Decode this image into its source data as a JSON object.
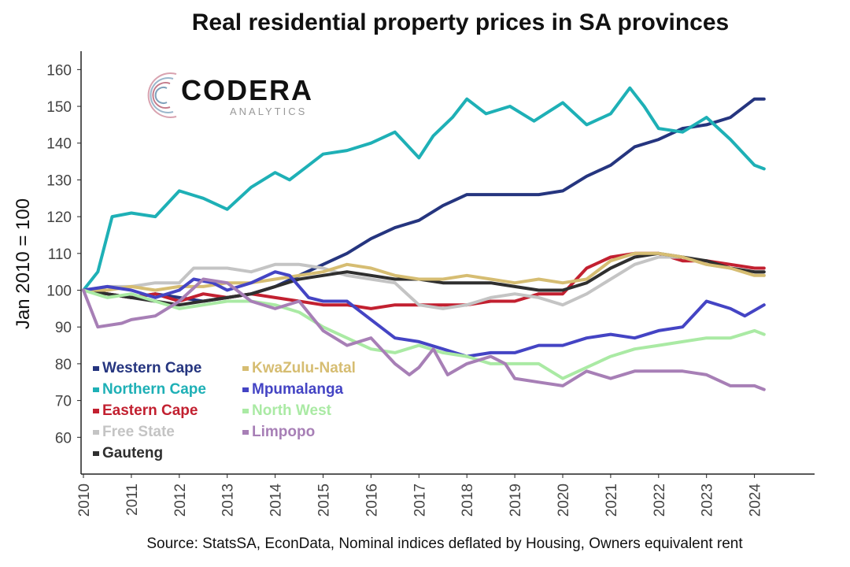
{
  "title": "Real residential property prices in SA provinces",
  "source": "Source: StatsSA, EconData, Nominal indices deflated by Housing, Owners equivalent rent",
  "logo": {
    "name": "CODERA",
    "sub": "ANALYTICS"
  },
  "chart_data": {
    "type": "line",
    "title": "Real residential property prices in SA provinces",
    "ylabel": "Jan 2010 = 100",
    "xlabel": "",
    "xlim": [
      2010,
      2025
    ],
    "ylim": [
      50,
      165
    ],
    "yticks": [
      60,
      70,
      80,
      90,
      100,
      110,
      120,
      130,
      140,
      150,
      160
    ],
    "xticks": [
      2010,
      2011,
      2012,
      2013,
      2014,
      2015,
      2016,
      2017,
      2018,
      2019,
      2020,
      2021,
      2022,
      2023,
      2024
    ],
    "grid": false,
    "legend_position": "bottom-left",
    "series": [
      {
        "name": "Western Cape",
        "color": "#25357f",
        "points": [
          [
            2010,
            100
          ],
          [
            2010.5,
            99
          ],
          [
            2011,
            98
          ],
          [
            2011.5,
            99
          ],
          [
            2012,
            98
          ],
          [
            2012.5,
            97
          ],
          [
            2013,
            98
          ],
          [
            2013.5,
            99
          ],
          [
            2014,
            101
          ],
          [
            2014.5,
            104
          ],
          [
            2015,
            107
          ],
          [
            2015.5,
            110
          ],
          [
            2016,
            114
          ],
          [
            2016.5,
            117
          ],
          [
            2017,
            119
          ],
          [
            2017.5,
            123
          ],
          [
            2018,
            126
          ],
          [
            2018.5,
            126
          ],
          [
            2019,
            126
          ],
          [
            2019.5,
            126
          ],
          [
            2020,
            127
          ],
          [
            2020.5,
            131
          ],
          [
            2021,
            134
          ],
          [
            2021.5,
            139
          ],
          [
            2022,
            141
          ],
          [
            2022.5,
            144
          ],
          [
            2023,
            145
          ],
          [
            2023.5,
            147
          ],
          [
            2024,
            152
          ],
          [
            2024.2,
            152
          ]
        ]
      },
      {
        "name": "Northern Cape",
        "color": "#1eb0b6",
        "points": [
          [
            2010,
            100
          ],
          [
            2010.3,
            105
          ],
          [
            2010.6,
            120
          ],
          [
            2011,
            121
          ],
          [
            2011.5,
            120
          ],
          [
            2012,
            127
          ],
          [
            2012.5,
            125
          ],
          [
            2013,
            122
          ],
          [
            2013.5,
            128
          ],
          [
            2014,
            132
          ],
          [
            2014.3,
            130
          ],
          [
            2014.7,
            134
          ],
          [
            2015,
            137
          ],
          [
            2015.5,
            138
          ],
          [
            2016,
            140
          ],
          [
            2016.5,
            143
          ],
          [
            2017,
            136
          ],
          [
            2017.3,
            142
          ],
          [
            2017.7,
            147
          ],
          [
            2018,
            152
          ],
          [
            2018.4,
            148
          ],
          [
            2018.9,
            150
          ],
          [
            2019.4,
            146
          ],
          [
            2020,
            151
          ],
          [
            2020.5,
            145
          ],
          [
            2021,
            148
          ],
          [
            2021.4,
            155
          ],
          [
            2021.7,
            150
          ],
          [
            2022,
            144
          ],
          [
            2022.5,
            143
          ],
          [
            2023,
            147
          ],
          [
            2023.5,
            141
          ],
          [
            2024,
            134
          ],
          [
            2024.2,
            133
          ]
        ]
      },
      {
        "name": "Eastern Cape",
        "color": "#c22030",
        "points": [
          [
            2010,
            100
          ],
          [
            2010.5,
            99
          ],
          [
            2011,
            98
          ],
          [
            2011.5,
            99
          ],
          [
            2012,
            97
          ],
          [
            2012.5,
            99
          ],
          [
            2013,
            98
          ],
          [
            2013.5,
            99
          ],
          [
            2014,
            98
          ],
          [
            2014.5,
            97
          ],
          [
            2015,
            96
          ],
          [
            2015.5,
            96
          ],
          [
            2016,
            95
          ],
          [
            2016.5,
            96
          ],
          [
            2017,
            96
          ],
          [
            2017.5,
            96
          ],
          [
            2018,
            96
          ],
          [
            2018.5,
            97
          ],
          [
            2019,
            97
          ],
          [
            2019.5,
            99
          ],
          [
            2020,
            99
          ],
          [
            2020.5,
            106
          ],
          [
            2021,
            109
          ],
          [
            2021.5,
            110
          ],
          [
            2022,
            110
          ],
          [
            2022.5,
            108
          ],
          [
            2023,
            108
          ],
          [
            2023.5,
            107
          ],
          [
            2024,
            106
          ],
          [
            2024.2,
            106
          ]
        ]
      },
      {
        "name": "Free State",
        "color": "#c4c4c4",
        "points": [
          [
            2010,
            100
          ],
          [
            2010.5,
            101
          ],
          [
            2011,
            101
          ],
          [
            2011.5,
            102
          ],
          [
            2012,
            102
          ],
          [
            2012.3,
            106
          ],
          [
            2012.7,
            106
          ],
          [
            2013,
            106
          ],
          [
            2013.5,
            105
          ],
          [
            2014,
            107
          ],
          [
            2014.5,
            107
          ],
          [
            2015,
            106
          ],
          [
            2015.5,
            104
          ],
          [
            2016,
            103
          ],
          [
            2016.5,
            102
          ],
          [
            2017,
            96
          ],
          [
            2017.5,
            95
          ],
          [
            2018,
            96
          ],
          [
            2018.5,
            98
          ],
          [
            2019,
            99
          ],
          [
            2019.5,
            98
          ],
          [
            2020,
            96
          ],
          [
            2020.5,
            99
          ],
          [
            2021,
            103
          ],
          [
            2021.5,
            107
          ],
          [
            2022,
            109
          ],
          [
            2022.5,
            109
          ],
          [
            2023,
            107
          ],
          [
            2023.5,
            106
          ],
          [
            2024,
            105
          ],
          [
            2024.2,
            104
          ]
        ]
      },
      {
        "name": "Gauteng",
        "color": "#2f2f2f",
        "points": [
          [
            2010,
            100
          ],
          [
            2010.5,
            99
          ],
          [
            2011,
            98
          ],
          [
            2011.5,
            97
          ],
          [
            2012,
            96
          ],
          [
            2012.5,
            97
          ],
          [
            2013,
            98
          ],
          [
            2013.5,
            99
          ],
          [
            2014,
            101
          ],
          [
            2014.5,
            103
          ],
          [
            2015,
            104
          ],
          [
            2015.5,
            105
          ],
          [
            2016,
            104
          ],
          [
            2016.5,
            103
          ],
          [
            2017,
            103
          ],
          [
            2017.5,
            102
          ],
          [
            2018,
            102
          ],
          [
            2018.5,
            102
          ],
          [
            2019,
            101
          ],
          [
            2019.5,
            100
          ],
          [
            2020,
            100
          ],
          [
            2020.5,
            102
          ],
          [
            2021,
            106
          ],
          [
            2021.5,
            109
          ],
          [
            2022,
            110
          ],
          [
            2022.5,
            109
          ],
          [
            2023,
            108
          ],
          [
            2023.5,
            106
          ],
          [
            2024,
            105
          ],
          [
            2024.2,
            105
          ]
        ]
      },
      {
        "name": "KwaZulu-Natal",
        "color": "#d6bd72",
        "points": [
          [
            2010,
            100
          ],
          [
            2010.5,
            100
          ],
          [
            2011,
            101
          ],
          [
            2011.5,
            100
          ],
          [
            2012,
            101
          ],
          [
            2012.5,
            101
          ],
          [
            2013,
            102
          ],
          [
            2013.5,
            102
          ],
          [
            2014,
            103
          ],
          [
            2014.5,
            104
          ],
          [
            2015,
            105
          ],
          [
            2015.5,
            107
          ],
          [
            2016,
            106
          ],
          [
            2016.5,
            104
          ],
          [
            2017,
            103
          ],
          [
            2017.5,
            103
          ],
          [
            2018,
            104
          ],
          [
            2018.5,
            103
          ],
          [
            2019,
            102
          ],
          [
            2019.5,
            103
          ],
          [
            2020,
            102
          ],
          [
            2020.5,
            103
          ],
          [
            2021,
            108
          ],
          [
            2021.5,
            110
          ],
          [
            2022,
            110
          ],
          [
            2022.5,
            109
          ],
          [
            2023,
            107
          ],
          [
            2023.5,
            106
          ],
          [
            2024,
            104
          ],
          [
            2024.2,
            104
          ]
        ]
      },
      {
        "name": "Mpumalanga",
        "color": "#4444c4",
        "points": [
          [
            2010,
            100
          ],
          [
            2010.5,
            101
          ],
          [
            2011,
            100
          ],
          [
            2011.5,
            98
          ],
          [
            2012,
            100
          ],
          [
            2012.3,
            103
          ],
          [
            2012.7,
            102
          ],
          [
            2013,
            100
          ],
          [
            2013.5,
            102
          ],
          [
            2014,
            105
          ],
          [
            2014.3,
            104
          ],
          [
            2014.7,
            98
          ],
          [
            2015,
            97
          ],
          [
            2015.5,
            97
          ],
          [
            2016,
            92
          ],
          [
            2016.5,
            87
          ],
          [
            2017,
            86
          ],
          [
            2017.5,
            84
          ],
          [
            2018,
            82
          ],
          [
            2018.5,
            83
          ],
          [
            2019,
            83
          ],
          [
            2019.5,
            85
          ],
          [
            2020,
            85
          ],
          [
            2020.5,
            87
          ],
          [
            2021,
            88
          ],
          [
            2021.5,
            87
          ],
          [
            2022,
            89
          ],
          [
            2022.5,
            90
          ],
          [
            2023,
            97
          ],
          [
            2023.5,
            95
          ],
          [
            2023.8,
            93
          ],
          [
            2024.2,
            96
          ]
        ]
      },
      {
        "name": "North West",
        "color": "#aaeaa4",
        "points": [
          [
            2010,
            100
          ],
          [
            2010.5,
            98
          ],
          [
            2011,
            99
          ],
          [
            2011.5,
            97
          ],
          [
            2012,
            95
          ],
          [
            2012.5,
            96
          ],
          [
            2013,
            97
          ],
          [
            2013.5,
            97
          ],
          [
            2014,
            96
          ],
          [
            2014.5,
            94
          ],
          [
            2015,
            90
          ],
          [
            2015.5,
            87
          ],
          [
            2016,
            84
          ],
          [
            2016.5,
            83
          ],
          [
            2017,
            85
          ],
          [
            2017.5,
            83
          ],
          [
            2018,
            82
          ],
          [
            2018.5,
            80
          ],
          [
            2019,
            80
          ],
          [
            2019.5,
            80
          ],
          [
            2020,
            76
          ],
          [
            2020.5,
            79
          ],
          [
            2021,
            82
          ],
          [
            2021.5,
            84
          ],
          [
            2022,
            85
          ],
          [
            2022.5,
            86
          ],
          [
            2023,
            87
          ],
          [
            2023.5,
            87
          ],
          [
            2024,
            89
          ],
          [
            2024.2,
            88
          ]
        ]
      },
      {
        "name": "Limpopo",
        "color": "#a77fb6",
        "points": [
          [
            2010,
            100
          ],
          [
            2010.3,
            90
          ],
          [
            2010.8,
            91
          ],
          [
            2011,
            92
          ],
          [
            2011.5,
            93
          ],
          [
            2012,
            97
          ],
          [
            2012.5,
            103
          ],
          [
            2013,
            102
          ],
          [
            2013.5,
            97
          ],
          [
            2014,
            95
          ],
          [
            2014.5,
            97
          ],
          [
            2015,
            89
          ],
          [
            2015.5,
            85
          ],
          [
            2016,
            87
          ],
          [
            2016.5,
            80
          ],
          [
            2016.8,
            77
          ],
          [
            2017,
            79
          ],
          [
            2017.3,
            84
          ],
          [
            2017.6,
            77
          ],
          [
            2018,
            80
          ],
          [
            2018.5,
            82
          ],
          [
            2018.8,
            80
          ],
          [
            2019,
            76
          ],
          [
            2019.5,
            75
          ],
          [
            2020,
            74
          ],
          [
            2020.5,
            78
          ],
          [
            2021,
            76
          ],
          [
            2021.5,
            78
          ],
          [
            2022,
            78
          ],
          [
            2022.5,
            78
          ],
          [
            2023,
            77
          ],
          [
            2023.5,
            74
          ],
          [
            2024,
            74
          ],
          [
            2024.2,
            73
          ]
        ]
      }
    ]
  }
}
